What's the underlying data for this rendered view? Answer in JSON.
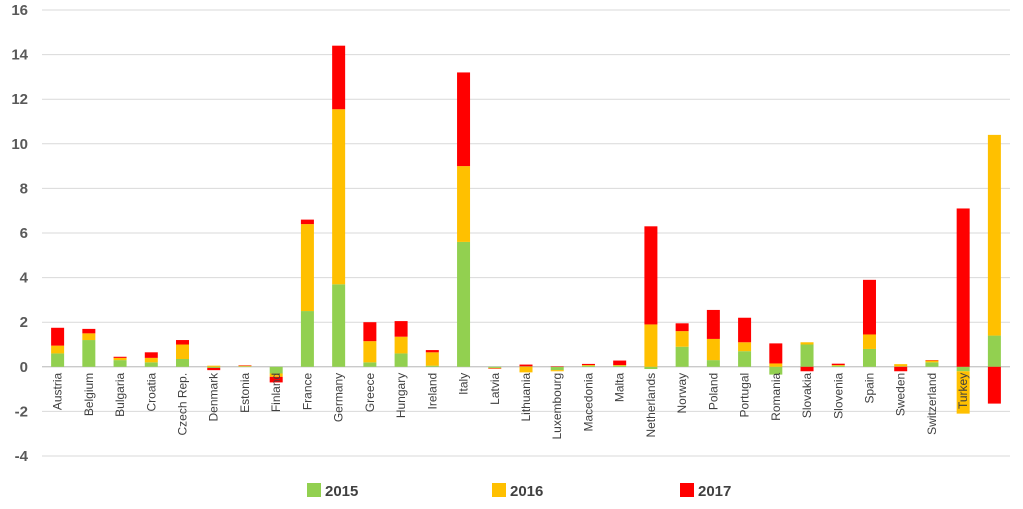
{
  "chart_data": {
    "type": "bar",
    "stacked": true,
    "title": "",
    "xlabel": "",
    "ylabel": "",
    "ylim": [
      -4,
      16
    ],
    "yticks": [
      -4,
      -2,
      0,
      2,
      4,
      6,
      8,
      10,
      12,
      14,
      16
    ],
    "grid": true,
    "legend_position": "bottom",
    "categories": [
      "Austria",
      "Belgium",
      "Bulgaria",
      "Croatia",
      "Czech Rep.",
      "Denmark",
      "Estonia",
      "Finland",
      "France",
      "Germany",
      "Greece",
      "Hungary",
      "Ireland",
      "Italy",
      "Latvia",
      "Lithuania",
      "Luxembourg",
      "Macedonia",
      "Malta",
      "Netherlands",
      "Norway",
      "Poland",
      "Portugal",
      "Romania",
      "Slovakia",
      "Slovenia",
      "Spain",
      "Sweden",
      "Switzerland",
      "Turkey",
      ""
    ],
    "series": [
      {
        "name": "2015",
        "color": "#92D050",
        "values": [
          0.6,
          1.2,
          0.3,
          0.2,
          0.35,
          -0.05,
          0.02,
          -0.3,
          2.5,
          3.7,
          0.2,
          0.6,
          0.05,
          5.6,
          -0.05,
          0.02,
          -0.15,
          0.05,
          0.05,
          -0.1,
          0.9,
          0.3,
          0.7,
          -0.35,
          1.0,
          0.05,
          0.8,
          0.02,
          0.2,
          -0.2,
          1.4
        ]
      },
      {
        "name": "2016",
        "color": "#FFC000",
        "values": [
          0.35,
          0.3,
          0.1,
          0.2,
          0.65,
          0.05,
          0.03,
          -0.15,
          3.9,
          7.85,
          0.95,
          0.75,
          0.6,
          3.4,
          -0.02,
          -0.25,
          -0.05,
          0.03,
          0.03,
          1.9,
          0.7,
          0.95,
          0.4,
          0.15,
          0.1,
          0.03,
          0.65,
          0.1,
          0.08,
          -1.9,
          9.0
        ]
      },
      {
        "name": "2017",
        "color": "#FF0000",
        "values": [
          0.8,
          0.2,
          0.05,
          0.25,
          0.2,
          -0.1,
          0.02,
          -0.25,
          0.2,
          2.85,
          0.85,
          0.7,
          0.1,
          4.2,
          -0.02,
          0.08,
          0.02,
          0.05,
          0.2,
          4.4,
          0.35,
          1.3,
          1.1,
          0.9,
          -0.2,
          0.06,
          2.45,
          -0.2,
          0.02,
          7.1,
          -1.65
        ]
      }
    ]
  }
}
